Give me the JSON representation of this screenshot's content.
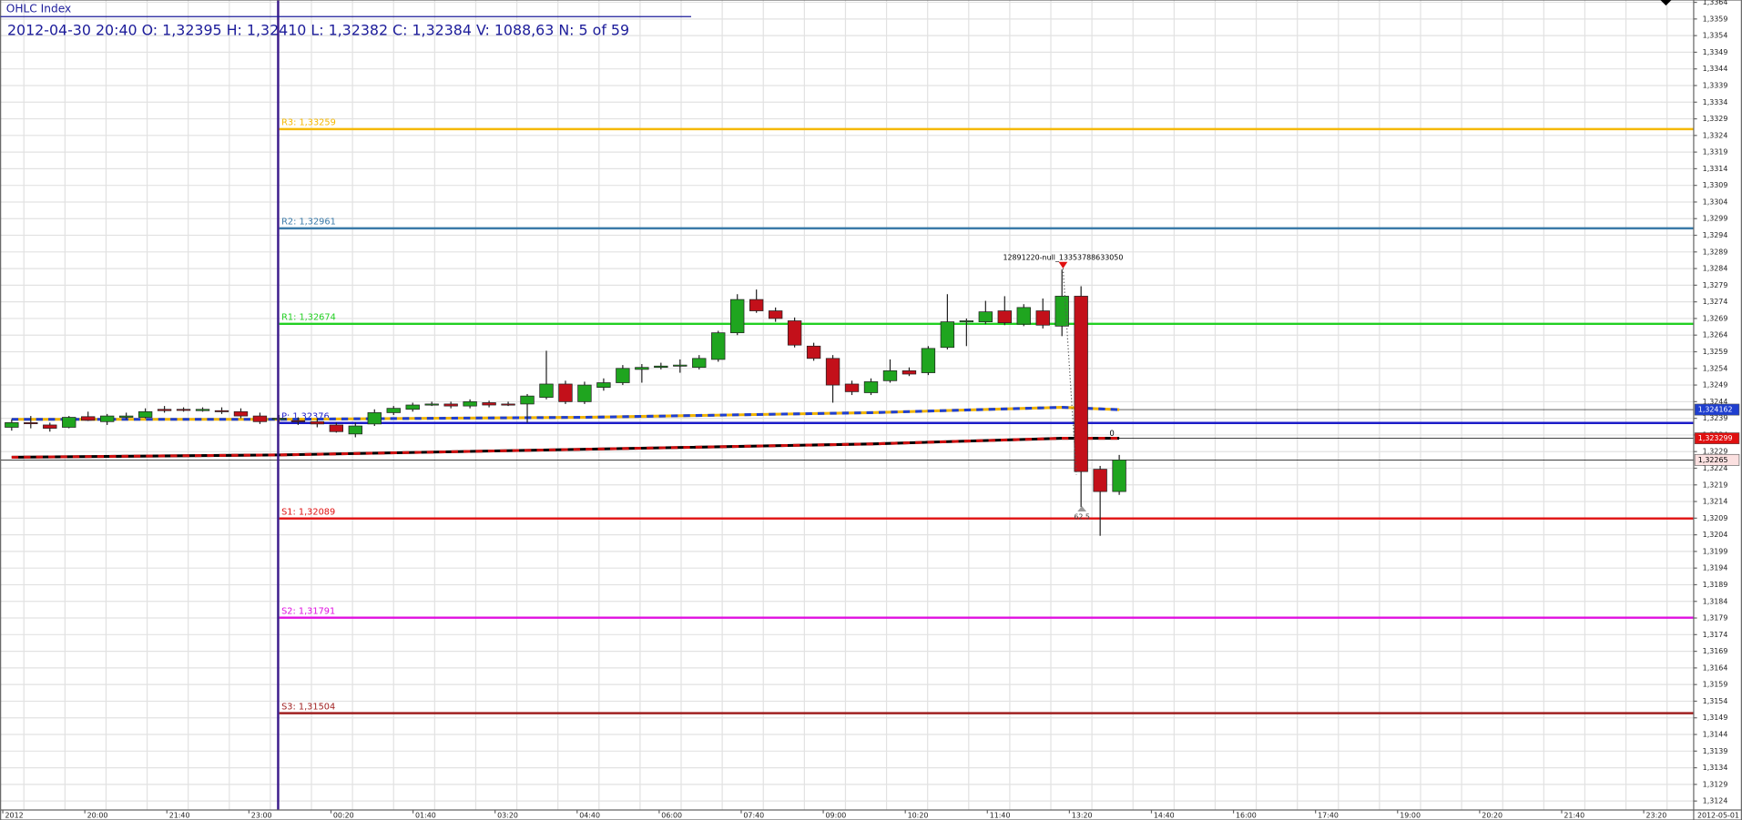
{
  "header": {
    "title": "OHLC Index",
    "info": "2012-04-30 20:40 O: 1,32395 H: 1,32410 L: 1,32382 C: 1,32384 V: 1088,63 N: 5 of 59"
  },
  "chart_data": {
    "type": "candlestick",
    "up_color": "#1fa51f",
    "down_color": "#c3101a",
    "grid": true,
    "open": [
      1.32363,
      1.32377,
      1.3237,
      1.32363,
      1.32395,
      1.3238,
      1.32393,
      1.32393,
      1.32417,
      1.32417,
      1.32413,
      1.32413,
      1.3241,
      1.32397,
      1.32387,
      1.32383,
      1.3238,
      1.3237,
      1.32343,
      1.32373,
      1.32407,
      1.32417,
      1.3243,
      1.32433,
      1.32427,
      1.32437,
      1.32433,
      1.32433,
      1.32453,
      1.32493,
      1.3244,
      1.32483,
      1.32497,
      1.32537,
      1.32543,
      1.32547,
      1.32543,
      1.32567,
      1.32647,
      1.32747,
      1.32713,
      1.32683,
      1.32607,
      1.3257,
      1.32493,
      1.32467,
      1.32503,
      1.32533,
      1.32527,
      1.32603,
      1.3268,
      1.3268,
      1.32713,
      1.32673,
      1.32713,
      1.32667,
      1.32757,
      1.32237,
      1.3217
    ],
    "high": [
      1.32387,
      1.32397,
      1.32377,
      1.32397,
      1.3241,
      1.32403,
      1.32407,
      1.3242,
      1.32427,
      1.32423,
      1.32423,
      1.32423,
      1.3242,
      1.32407,
      1.324,
      1.32393,
      1.3239,
      1.32377,
      1.32377,
      1.32417,
      1.32427,
      1.32437,
      1.3244,
      1.3244,
      1.32447,
      1.32443,
      1.3244,
      1.32463,
      1.32593,
      1.32503,
      1.325,
      1.3251,
      1.3255,
      1.32553,
      1.32557,
      1.32567,
      1.3258,
      1.32653,
      1.32763,
      1.32777,
      1.32723,
      1.32693,
      1.32617,
      1.3258,
      1.32503,
      1.3251,
      1.32567,
      1.32543,
      1.32607,
      1.32763,
      1.3269,
      1.32743,
      1.32757,
      1.32733,
      1.3275,
      1.32837,
      1.32787,
      1.32247,
      1.3228
    ],
    "low": [
      1.32353,
      1.3236,
      1.3235,
      1.3236,
      1.32382,
      1.3237,
      1.32387,
      1.3239,
      1.32407,
      1.3241,
      1.3241,
      1.32403,
      1.3239,
      1.32373,
      1.32377,
      1.3237,
      1.32363,
      1.32347,
      1.32333,
      1.32367,
      1.324,
      1.3241,
      1.32427,
      1.3242,
      1.3242,
      1.32423,
      1.32427,
      1.32377,
      1.32447,
      1.32433,
      1.32433,
      1.32473,
      1.3249,
      1.32497,
      1.32537,
      1.32527,
      1.32537,
      1.3256,
      1.3264,
      1.32707,
      1.3268,
      1.32603,
      1.32563,
      1.32437,
      1.3246,
      1.3246,
      1.32497,
      1.32517,
      1.3252,
      1.32597,
      1.32607,
      1.32673,
      1.3267,
      1.32667,
      1.3266,
      1.32637,
      1.32123,
      1.32037,
      1.3216
    ],
    "close": [
      1.32377,
      1.32375,
      1.3236,
      1.32393,
      1.32384,
      1.32397,
      1.32397,
      1.3241,
      1.32413,
      1.32415,
      1.32417,
      1.3241,
      1.32397,
      1.3238,
      1.3239,
      1.3238,
      1.32373,
      1.3235,
      1.32367,
      1.32407,
      1.3242,
      1.3243,
      1.32433,
      1.32427,
      1.3244,
      1.3243,
      1.32432,
      1.32457,
      1.32493,
      1.3244,
      1.3249,
      1.32497,
      1.3254,
      1.32543,
      1.32547,
      1.3255,
      1.3257,
      1.32647,
      1.32747,
      1.32713,
      1.3269,
      1.3261,
      1.3257,
      1.3249,
      1.3247,
      1.325,
      1.32533,
      1.32523,
      1.326,
      1.3268,
      1.32683,
      1.3271,
      1.32677,
      1.32723,
      1.3267,
      1.32757,
      1.3223,
      1.3217,
      1.32265
    ],
    "x_labels": [
      "2012",
      "20:00",
      "21:40",
      "23:00",
      "00:20",
      "01:40",
      "03:20",
      "04:40",
      "06:00",
      "07:40",
      "09:00",
      "10:20",
      "11:40",
      "13:20",
      "14:40",
      "16:00",
      "17:40",
      "19:00",
      "20:20",
      "21:40",
      "23:20",
      "2012-05-01"
    ],
    "ylim": [
      1.31213,
      1.33647
    ],
    "yticks": [
      {
        "value": 1.3124,
        "label": "1,3124"
      },
      {
        "value": 1.3129,
        "label": "1,3129"
      },
      {
        "value": 1.3134,
        "label": "1,3134"
      },
      {
        "value": 1.3139,
        "label": "1,3139"
      },
      {
        "value": 1.3144,
        "label": "1,3144"
      },
      {
        "value": 1.3149,
        "label": "1,3149"
      },
      {
        "value": 1.3154,
        "label": "1,3154"
      },
      {
        "value": 1.3159,
        "label": "1,3159"
      },
      {
        "value": 1.3164,
        "label": "1,3164"
      },
      {
        "value": 1.3169,
        "label": "1,3169"
      },
      {
        "value": 1.3174,
        "label": "1,3174"
      },
      {
        "value": 1.3179,
        "label": "1,3179"
      },
      {
        "value": 1.3184,
        "label": "1,3184"
      },
      {
        "value": 1.3189,
        "label": "1,3189"
      },
      {
        "value": 1.3194,
        "label": "1,3194"
      },
      {
        "value": 1.3199,
        "label": "1,3199"
      },
      {
        "value": 1.3204,
        "label": "1,3204"
      },
      {
        "value": 1.3209,
        "label": "1,3209"
      },
      {
        "value": 1.3214,
        "label": "1,3214"
      },
      {
        "value": 1.3219,
        "label": "1,3219"
      },
      {
        "value": 1.3224,
        "label": "1,3224"
      },
      {
        "value": 1.3229,
        "label": "1,3229"
      },
      {
        "value": 1.3234,
        "label": "1,3234"
      },
      {
        "value": 1.3239,
        "label": "1,3239"
      },
      {
        "value": 1.3244,
        "label": "1,3244"
      },
      {
        "value": 1.3249,
        "label": "1,3249"
      },
      {
        "value": 1.3254,
        "label": "1,3254"
      },
      {
        "value": 1.3259,
        "label": "1,3259"
      },
      {
        "value": 1.3264,
        "label": "1,3264"
      },
      {
        "value": 1.3269,
        "label": "1,3269"
      },
      {
        "value": 1.3274,
        "label": "1,3274"
      },
      {
        "value": 1.3279,
        "label": "1,3279"
      },
      {
        "value": 1.3284,
        "label": "1,3284"
      },
      {
        "value": 1.3289,
        "label": "1,3289"
      },
      {
        "value": 1.3294,
        "label": "1,3294"
      },
      {
        "value": 1.3299,
        "label": "1,3299"
      },
      {
        "value": 1.3304,
        "label": "1,3304"
      },
      {
        "value": 1.3309,
        "label": "1,3309"
      },
      {
        "value": 1.3314,
        "label": "1,3314"
      },
      {
        "value": 1.3319,
        "label": "1,3319"
      },
      {
        "value": 1.3324,
        "label": "1,3324"
      },
      {
        "value": 1.3329,
        "label": "1,3329"
      },
      {
        "value": 1.3334,
        "label": "1,3334"
      },
      {
        "value": 1.3339,
        "label": "1,3339"
      },
      {
        "value": 1.3344,
        "label": "1,3344"
      },
      {
        "value": 1.3349,
        "label": "1,3349"
      },
      {
        "value": 1.3354,
        "label": "1,3354"
      },
      {
        "value": 1.3359,
        "label": "1,3359"
      },
      {
        "value": 1.3364,
        "label": "1,3364"
      }
    ],
    "pivots": [
      {
        "label": "R3: 1,33259",
        "value": 1.33259,
        "color": "#f5b800"
      },
      {
        "label": "R2: 1,32961",
        "value": 1.32961,
        "color": "#3a7aa8"
      },
      {
        "label": "R1: 1,32674",
        "value": 1.32674,
        "color": "#22d022"
      },
      {
        "label": "P: 1,32376",
        "value": 1.32376,
        "color": "#1c1cc8"
      },
      {
        "label": "S1: 1,32089",
        "value": 1.32089,
        "color": "#e01010"
      },
      {
        "label": "S2: 1,31791",
        "value": 1.31791,
        "color": "#e010e0"
      },
      {
        "label": "S3: 1,31504",
        "value": 1.31504,
        "color": "#a02020"
      }
    ],
    "moving_averages": [
      {
        "x": [
          0,
          14,
          30,
          45,
          55,
          58
        ],
        "values": [
          1.32387,
          1.32387,
          1.32393,
          1.32407,
          1.32423,
          1.32416
        ],
        "color": "#f0b400",
        "dash_color": "#1f3fd0"
      },
      {
        "x": [
          0,
          14,
          30,
          45,
          55,
          58
        ],
        "values": [
          1.32273,
          1.3228,
          1.32297,
          1.32313,
          1.3233,
          1.3233
        ],
        "color": "#000000",
        "dash_color": "#d01010"
      }
    ],
    "price_labels": [
      {
        "value": 1.324162,
        "label": "1,324162",
        "color": "#1f3fd0",
        "text_color": "#ffffff"
      },
      {
        "value": 1.323299,
        "label": "1,323299",
        "color": "#e01010",
        "text_color": "#ffffff"
      },
      {
        "value": 1.32265,
        "label": "1,32265",
        "color": "#fbe0e0",
        "text_color": "#000000"
      }
    ],
    "annotations": [
      "12891220-null_13353788633050",
      "62.5",
      "0"
    ]
  }
}
